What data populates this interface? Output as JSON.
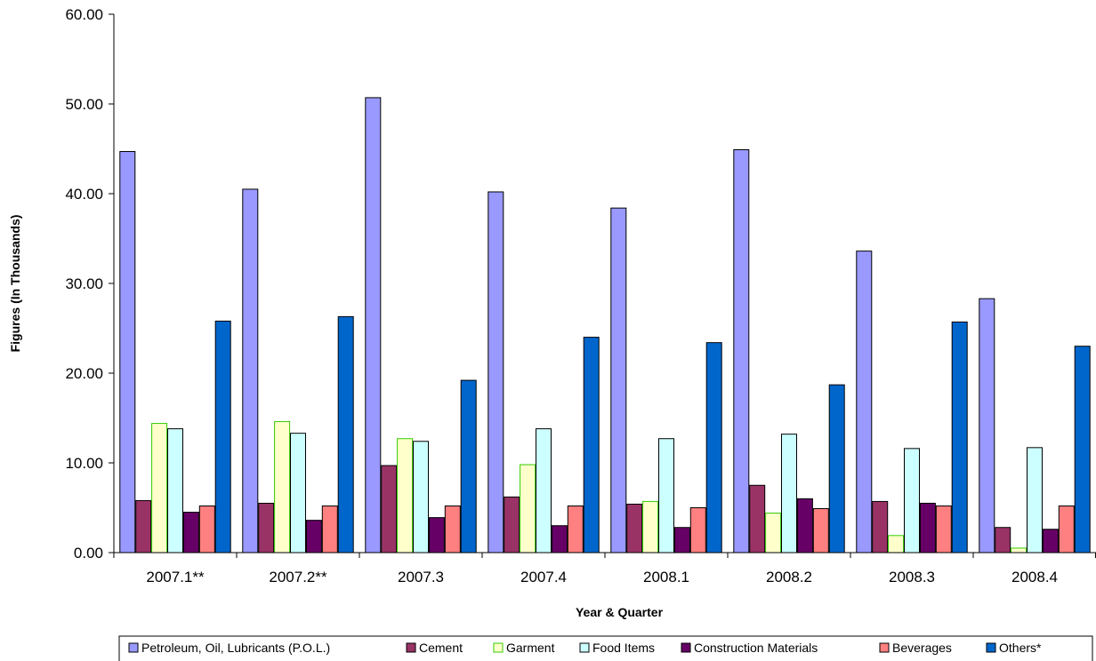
{
  "chart_data": {
    "type": "bar",
    "xlabel": "Year & Quarter",
    "ylabel": "Figures (In Thousands)",
    "ylim": [
      0,
      60
    ],
    "yticks": [
      "0.00",
      "10.00",
      "20.00",
      "30.00",
      "40.00",
      "50.00",
      "60.00"
    ],
    "categories": [
      "2007.1**",
      "2007.2**",
      "2007.3",
      "2007.4",
      "2008.1",
      "2008.2",
      "2008.3",
      "2008.4"
    ],
    "grid": false,
    "legend_position": "bottom",
    "series": [
      {
        "name": "Petroleum, Oil, Lubricants (P.O.L.)",
        "color": "#9999ff",
        "stroke": "#000000",
        "values": [
          44.7,
          40.5,
          50.7,
          40.2,
          38.4,
          44.9,
          33.6,
          28.3
        ]
      },
      {
        "name": "Cement",
        "color": "#993366",
        "stroke": "#000000",
        "values": [
          5.8,
          5.5,
          9.7,
          6.2,
          5.4,
          7.5,
          5.7,
          2.8
        ]
      },
      {
        "name": "Garment",
        "color": "#ffffcc",
        "stroke": "#33cc00",
        "values": [
          14.4,
          14.6,
          12.7,
          9.8,
          5.7,
          4.4,
          1.9,
          0.5
        ]
      },
      {
        "name": "Food Items",
        "color": "#ccffff",
        "stroke": "#000000",
        "values": [
          13.8,
          13.3,
          12.4,
          13.8,
          12.7,
          13.2,
          11.6,
          11.7
        ]
      },
      {
        "name": "Construction Materials",
        "color": "#660066",
        "stroke": "#000000",
        "values": [
          4.5,
          3.6,
          3.9,
          3.0,
          2.8,
          6.0,
          5.5,
          2.6
        ]
      },
      {
        "name": "Beverages",
        "color": "#ff8080",
        "stroke": "#000000",
        "values": [
          5.2,
          5.2,
          5.2,
          5.2,
          5.0,
          4.9,
          5.2,
          5.2
        ]
      },
      {
        "name": "Others*",
        "color": "#0066cc",
        "stroke": "#000000",
        "values": [
          25.8,
          26.3,
          19.2,
          24.0,
          23.4,
          18.7,
          25.7,
          23.0
        ]
      }
    ]
  }
}
